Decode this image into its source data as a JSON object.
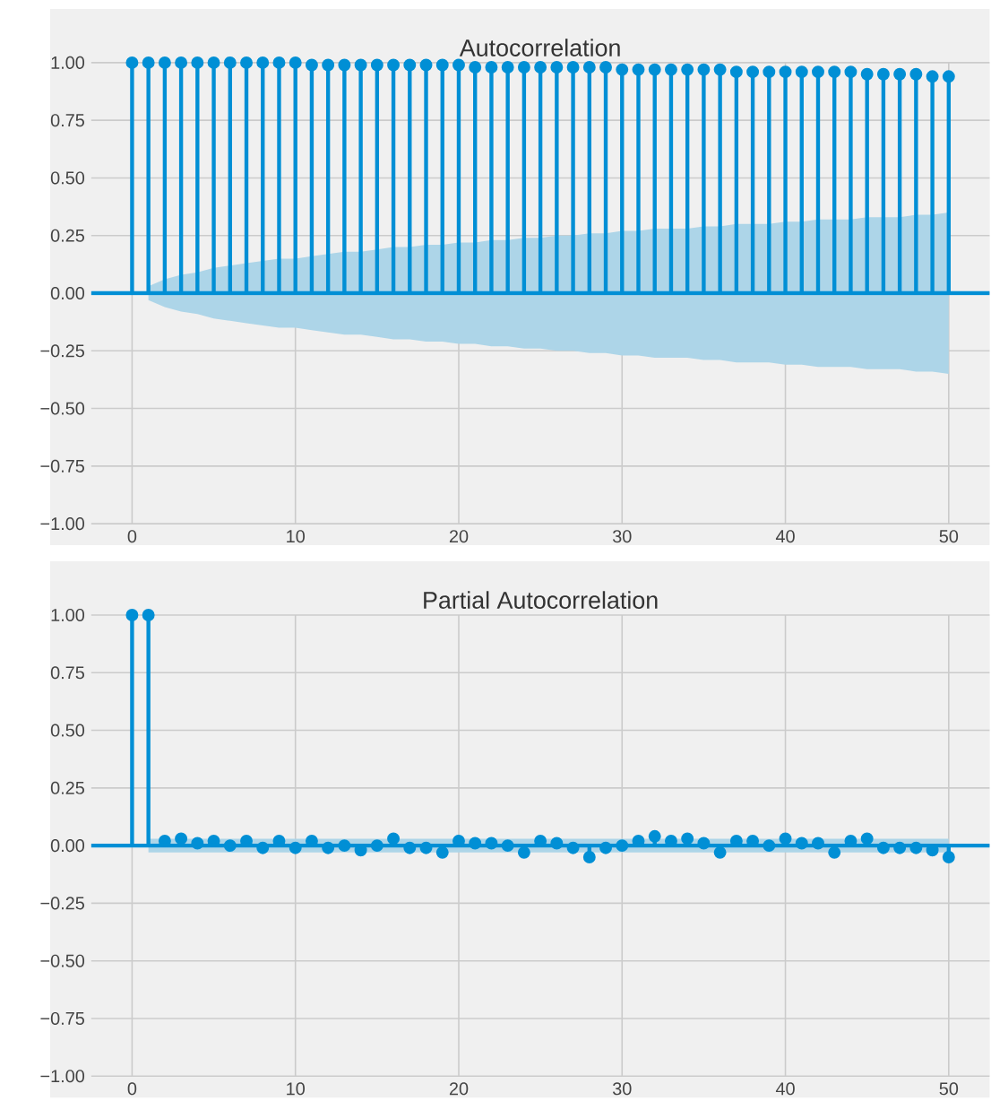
{
  "chart_data": [
    {
      "type": "lollipop",
      "title": "Autocorrelation",
      "x": [
        0,
        1,
        2,
        3,
        4,
        5,
        6,
        7,
        8,
        9,
        10,
        11,
        12,
        13,
        14,
        15,
        16,
        17,
        18,
        19,
        20,
        21,
        22,
        23,
        24,
        25,
        26,
        27,
        28,
        29,
        30,
        31,
        32,
        33,
        34,
        35,
        36,
        37,
        38,
        39,
        40,
        41,
        42,
        43,
        44,
        45,
        46,
        47,
        48,
        49,
        50
      ],
      "series": [
        {
          "color": "#008fd5",
          "values": [
            1.0,
            1.0,
            1.0,
            1.0,
            1.0,
            1.0,
            1.0,
            1.0,
            1.0,
            1.0,
            1.0,
            0.99,
            0.99,
            0.99,
            0.99,
            0.99,
            0.99,
            0.99,
            0.99,
            0.99,
            0.99,
            0.98,
            0.98,
            0.98,
            0.98,
            0.98,
            0.98,
            0.98,
            0.98,
            0.98,
            0.97,
            0.97,
            0.97,
            0.97,
            0.97,
            0.97,
            0.97,
            0.96,
            0.96,
            0.96,
            0.96,
            0.96,
            0.96,
            0.96,
            0.96,
            0.95,
            0.95,
            0.95,
            0.95,
            0.94,
            0.94
          ],
          "upper": [
            null,
            0.03,
            0.06,
            0.08,
            0.09,
            0.11,
            0.12,
            0.13,
            0.14,
            0.15,
            0.15,
            0.16,
            0.17,
            0.18,
            0.18,
            0.19,
            0.2,
            0.2,
            0.21,
            0.21,
            0.22,
            0.22,
            0.23,
            0.23,
            0.24,
            0.24,
            0.25,
            0.25,
            0.26,
            0.26,
            0.27,
            0.27,
            0.28,
            0.28,
            0.28,
            0.29,
            0.29,
            0.3,
            0.3,
            0.3,
            0.31,
            0.31,
            0.32,
            0.32,
            0.32,
            0.33,
            0.33,
            0.33,
            0.34,
            0.34,
            0.35
          ],
          "lower": [
            null,
            -0.03,
            -0.06,
            -0.08,
            -0.09,
            -0.11,
            -0.12,
            -0.13,
            -0.14,
            -0.15,
            -0.15,
            -0.16,
            -0.17,
            -0.18,
            -0.18,
            -0.19,
            -0.2,
            -0.2,
            -0.21,
            -0.21,
            -0.22,
            -0.22,
            -0.23,
            -0.23,
            -0.24,
            -0.24,
            -0.25,
            -0.25,
            -0.26,
            -0.26,
            -0.27,
            -0.27,
            -0.28,
            -0.28,
            -0.28,
            -0.29,
            -0.29,
            -0.3,
            -0.3,
            -0.3,
            -0.31,
            -0.31,
            -0.32,
            -0.32,
            -0.32,
            -0.33,
            -0.33,
            -0.33,
            -0.34,
            -0.34,
            -0.35
          ]
        }
      ],
      "xlim": [
        -2.5,
        52.5
      ],
      "ylim": [
        -1,
        1
      ],
      "xticks": [
        0,
        10,
        20,
        30,
        40,
        50
      ],
      "yticks": [
        {
          "value": -1,
          "label": "−1.00"
        },
        {
          "value": -0.75,
          "label": "−0.75"
        },
        {
          "value": -0.5,
          "label": "−0.50"
        },
        {
          "value": -0.25,
          "label": "−0.25"
        },
        {
          "value": 0,
          "label": "0.00"
        },
        {
          "value": 0.25,
          "label": "0.25"
        },
        {
          "value": 0.5,
          "label": "0.50"
        },
        {
          "value": 0.75,
          "label": "0.75"
        },
        {
          "value": 1,
          "label": "1.00"
        }
      ],
      "grid": true,
      "marker": "circle",
      "ref_lines": [
        {
          "axis": "y",
          "value": 0,
          "color": "#008fd5"
        }
      ]
    },
    {
      "type": "lollipop",
      "title": "Partial Autocorrelation",
      "x": [
        0,
        1,
        2,
        3,
        4,
        5,
        6,
        7,
        8,
        9,
        10,
        11,
        12,
        13,
        14,
        15,
        16,
        17,
        18,
        19,
        20,
        21,
        22,
        23,
        24,
        25,
        26,
        27,
        28,
        29,
        30,
        31,
        32,
        33,
        34,
        35,
        36,
        37,
        38,
        39,
        40,
        41,
        42,
        43,
        44,
        45,
        46,
        47,
        48,
        49,
        50
      ],
      "series": [
        {
          "color": "#008fd5",
          "values": [
            1.0,
            1.0,
            0.02,
            0.03,
            0.01,
            0.02,
            0.0,
            0.02,
            -0.01,
            0.02,
            -0.01,
            0.02,
            -0.01,
            0.0,
            -0.02,
            0.0,
            0.03,
            -0.01,
            -0.01,
            -0.03,
            0.02,
            0.01,
            0.01,
            0.0,
            -0.03,
            0.02,
            0.01,
            -0.01,
            -0.05,
            -0.01,
            0.0,
            0.02,
            0.04,
            0.02,
            0.03,
            0.01,
            -0.03,
            0.02,
            0.02,
            0.0,
            0.03,
            0.01,
            0.01,
            -0.03,
            0.02,
            0.03,
            -0.01,
            -0.01,
            -0.01,
            -0.02,
            -0.05
          ],
          "upper": [
            null,
            0.03,
            0.03,
            0.03,
            0.03,
            0.03,
            0.03,
            0.03,
            0.03,
            0.03,
            0.03,
            0.03,
            0.03,
            0.03,
            0.03,
            0.03,
            0.03,
            0.03,
            0.03,
            0.03,
            0.03,
            0.03,
            0.03,
            0.03,
            0.03,
            0.03,
            0.03,
            0.03,
            0.03,
            0.03,
            0.03,
            0.03,
            0.03,
            0.03,
            0.03,
            0.03,
            0.03,
            0.03,
            0.03,
            0.03,
            0.03,
            0.03,
            0.03,
            0.03,
            0.03,
            0.03,
            0.03,
            0.03,
            0.03,
            0.03,
            0.03
          ],
          "lower": [
            null,
            -0.03,
            -0.03,
            -0.03,
            -0.03,
            -0.03,
            -0.03,
            -0.03,
            -0.03,
            -0.03,
            -0.03,
            -0.03,
            -0.03,
            -0.03,
            -0.03,
            -0.03,
            -0.03,
            -0.03,
            -0.03,
            -0.03,
            -0.03,
            -0.03,
            -0.03,
            -0.03,
            -0.03,
            -0.03,
            -0.03,
            -0.03,
            -0.03,
            -0.03,
            -0.03,
            -0.03,
            -0.03,
            -0.03,
            -0.03,
            -0.03,
            -0.03,
            -0.03,
            -0.03,
            -0.03,
            -0.03,
            -0.03,
            -0.03,
            -0.03,
            -0.03,
            -0.03,
            -0.03,
            -0.03,
            -0.03,
            -0.03,
            -0.03
          ]
        }
      ],
      "xlim": [
        -2.5,
        52.5
      ],
      "ylim": [
        -1,
        1
      ],
      "xticks": [
        0,
        10,
        20,
        30,
        40,
        50
      ],
      "yticks": [
        {
          "value": -1,
          "label": "−1.00"
        },
        {
          "value": -0.75,
          "label": "−0.75"
        },
        {
          "value": -0.5,
          "label": "−0.50"
        },
        {
          "value": -0.25,
          "label": "−0.25"
        },
        {
          "value": 0,
          "label": "0.00"
        },
        {
          "value": 0.25,
          "label": "0.25"
        },
        {
          "value": 0.5,
          "label": "0.50"
        },
        {
          "value": 0.75,
          "label": "0.75"
        },
        {
          "value": 1,
          "label": "1.00"
        }
      ],
      "grid": true,
      "marker": "circle",
      "ref_lines": [
        {
          "axis": "y",
          "value": 0,
          "color": "#008fd5"
        }
      ]
    }
  ]
}
